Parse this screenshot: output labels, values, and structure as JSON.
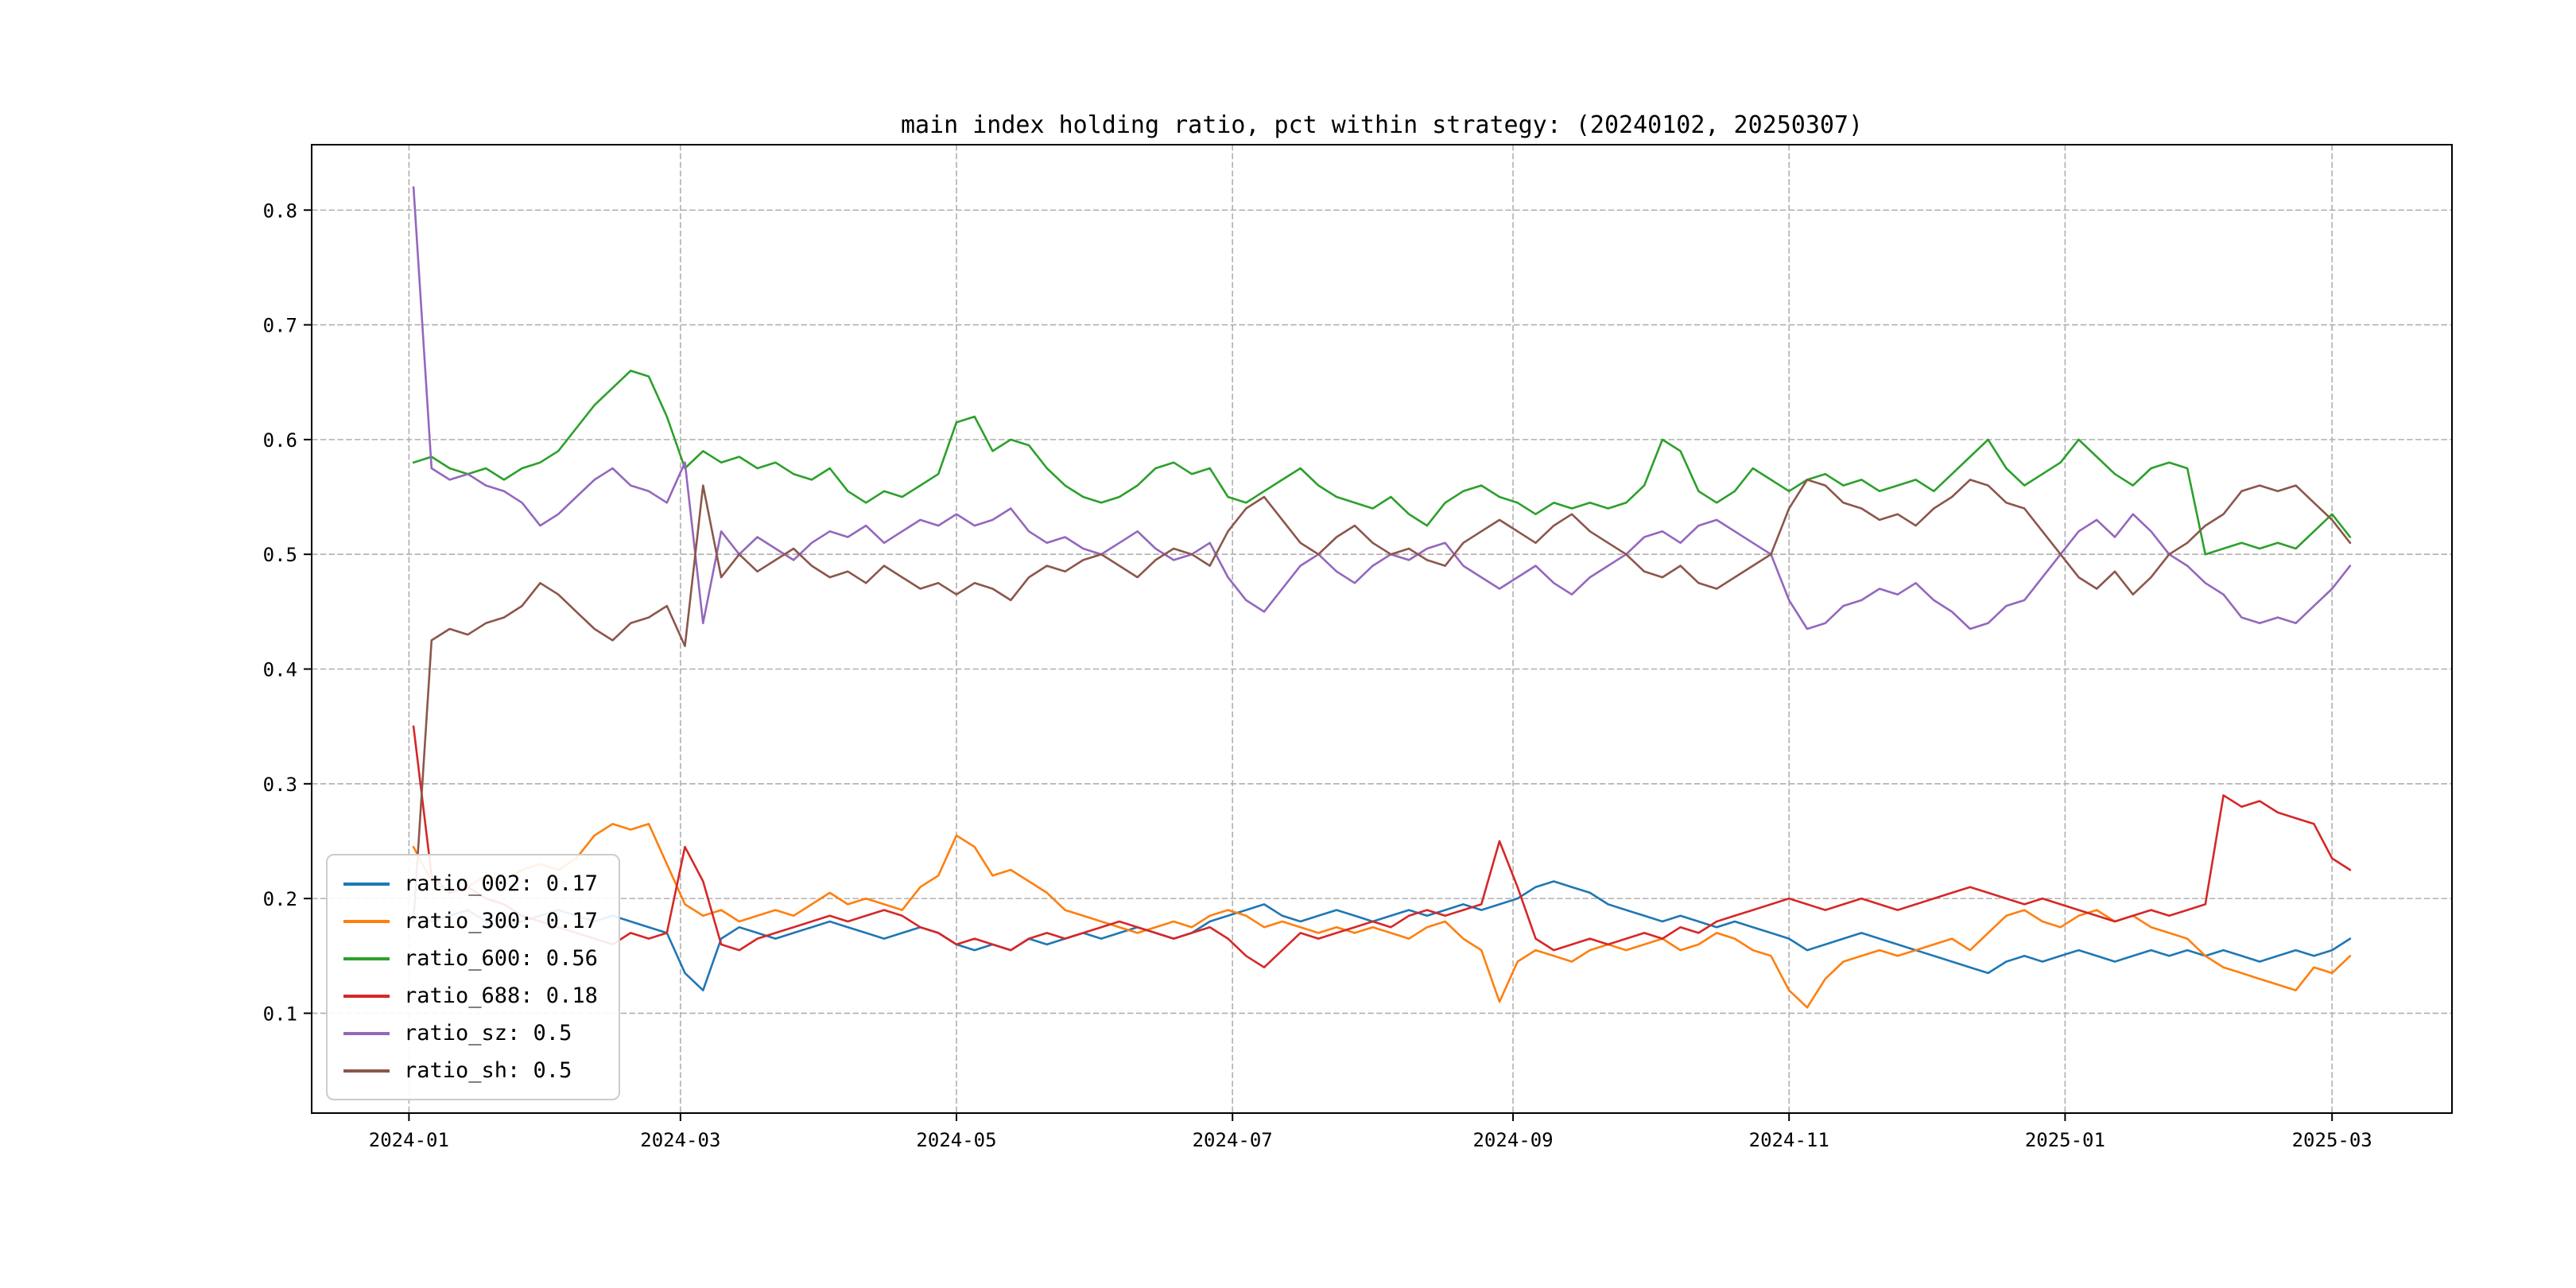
{
  "title": "main index holding ratio, pct within strategy: (20240102, 20250307)",
  "chart_data": {
    "type": "line",
    "title": "main index holding ratio, pct within strategy: (20240102, 20250307)",
    "grid": true,
    "legend_position": "lower left",
    "x_unit": "days since 2024-01-01",
    "date_range": [
      "20240102",
      "20250307"
    ],
    "xlim": [
      -21.5,
      451.5
    ],
    "ylim": [
      0.013,
      0.857
    ],
    "x_ticks": [
      {
        "t": 0,
        "label": "2024-01"
      },
      {
        "t": 60,
        "label": "2024-03"
      },
      {
        "t": 121,
        "label": "2024-05"
      },
      {
        "t": 182,
        "label": "2024-07"
      },
      {
        "t": 244,
        "label": "2024-09"
      },
      {
        "t": 305,
        "label": "2024-11"
      },
      {
        "t": 366,
        "label": "2025-01"
      },
      {
        "t": 425,
        "label": "2025-03"
      }
    ],
    "y_ticks": [
      {
        "v": 0.1,
        "label": "0.1"
      },
      {
        "v": 0.2,
        "label": "0.2"
      },
      {
        "v": 0.3,
        "label": "0.3"
      },
      {
        "v": 0.4,
        "label": "0.4"
      },
      {
        "v": 0.5,
        "label": "0.5"
      },
      {
        "v": 0.6,
        "label": "0.6"
      },
      {
        "v": 0.7,
        "label": "0.7"
      },
      {
        "v": 0.8,
        "label": "0.8"
      }
    ],
    "x": [
      1,
      5,
      9,
      13,
      17,
      21,
      25,
      29,
      33,
      37,
      41,
      45,
      49,
      53,
      57,
      61,
      65,
      69,
      73,
      77,
      81,
      85,
      89,
      93,
      97,
      101,
      105,
      109,
      113,
      117,
      121,
      125,
      129,
      133,
      137,
      141,
      145,
      149,
      153,
      157,
      161,
      165,
      169,
      173,
      177,
      181,
      185,
      189,
      193,
      197,
      201,
      205,
      209,
      213,
      217,
      221,
      225,
      229,
      233,
      237,
      241,
      245,
      249,
      253,
      257,
      261,
      265,
      269,
      273,
      277,
      281,
      285,
      289,
      293,
      297,
      301,
      305,
      309,
      313,
      317,
      321,
      325,
      329,
      333,
      337,
      341,
      345,
      349,
      353,
      357,
      361,
      365,
      369,
      373,
      377,
      381,
      385,
      389,
      393,
      397,
      401,
      405,
      409,
      413,
      417,
      421,
      425,
      429
    ],
    "series": [
      {
        "name": "ratio_002",
        "color": "#1f77b4",
        "legend": "ratio_002: 0.17",
        "values": [
          0.185,
          0.18,
          0.185,
          0.19,
          0.18,
          0.175,
          0.18,
          0.185,
          0.19,
          0.185,
          0.18,
          0.185,
          0.18,
          0.175,
          0.17,
          0.135,
          0.12,
          0.165,
          0.175,
          0.17,
          0.165,
          0.17,
          0.175,
          0.18,
          0.175,
          0.17,
          0.165,
          0.17,
          0.175,
          0.17,
          0.16,
          0.155,
          0.16,
          0.155,
          0.165,
          0.16,
          0.165,
          0.17,
          0.165,
          0.17,
          0.175,
          0.17,
          0.165,
          0.17,
          0.18,
          0.185,
          0.19,
          0.195,
          0.185,
          0.18,
          0.185,
          0.19,
          0.185,
          0.18,
          0.185,
          0.19,
          0.185,
          0.19,
          0.195,
          0.19,
          0.195,
          0.2,
          0.21,
          0.215,
          0.21,
          0.205,
          0.195,
          0.19,
          0.185,
          0.18,
          0.185,
          0.18,
          0.175,
          0.18,
          0.175,
          0.17,
          0.165,
          0.155,
          0.16,
          0.165,
          0.17,
          0.165,
          0.16,
          0.155,
          0.15,
          0.145,
          0.14,
          0.135,
          0.145,
          0.15,
          0.145,
          0.15,
          0.155,
          0.15,
          0.145,
          0.15,
          0.155,
          0.15,
          0.155,
          0.15,
          0.155,
          0.15,
          0.145,
          0.15,
          0.155,
          0.15,
          0.155,
          0.165
        ]
      },
      {
        "name": "ratio_300",
        "color": "#ff7f0e",
        "legend": "ratio_300: 0.17",
        "values": [
          0.245,
          0.215,
          0.205,
          0.21,
          0.22,
          0.215,
          0.225,
          0.23,
          0.225,
          0.235,
          0.255,
          0.265,
          0.26,
          0.265,
          0.23,
          0.195,
          0.185,
          0.19,
          0.18,
          0.185,
          0.19,
          0.185,
          0.195,
          0.205,
          0.195,
          0.2,
          0.195,
          0.19,
          0.21,
          0.22,
          0.255,
          0.245,
          0.22,
          0.225,
          0.215,
          0.205,
          0.19,
          0.185,
          0.18,
          0.175,
          0.17,
          0.175,
          0.18,
          0.175,
          0.185,
          0.19,
          0.185,
          0.175,
          0.18,
          0.175,
          0.17,
          0.175,
          0.17,
          0.175,
          0.17,
          0.165,
          0.175,
          0.18,
          0.165,
          0.155,
          0.11,
          0.145,
          0.155,
          0.15,
          0.145,
          0.155,
          0.16,
          0.155,
          0.16,
          0.165,
          0.155,
          0.16,
          0.17,
          0.165,
          0.155,
          0.15,
          0.12,
          0.105,
          0.13,
          0.145,
          0.15,
          0.155,
          0.15,
          0.155,
          0.16,
          0.165,
          0.155,
          0.17,
          0.185,
          0.19,
          0.18,
          0.175,
          0.185,
          0.19,
          0.18,
          0.185,
          0.175,
          0.17,
          0.165,
          0.15,
          0.14,
          0.135,
          0.13,
          0.125,
          0.12,
          0.14,
          0.135,
          0.15
        ]
      },
      {
        "name": "ratio_600",
        "color": "#2ca02c",
        "legend": "ratio_600: 0.56",
        "values": [
          0.58,
          0.585,
          0.575,
          0.57,
          0.575,
          0.565,
          0.575,
          0.58,
          0.59,
          0.61,
          0.63,
          0.645,
          0.66,
          0.655,
          0.62,
          0.575,
          0.59,
          0.58,
          0.585,
          0.575,
          0.58,
          0.57,
          0.565,
          0.575,
          0.555,
          0.545,
          0.555,
          0.55,
          0.56,
          0.57,
          0.615,
          0.62,
          0.59,
          0.6,
          0.595,
          0.575,
          0.56,
          0.55,
          0.545,
          0.55,
          0.56,
          0.575,
          0.58,
          0.57,
          0.575,
          0.55,
          0.545,
          0.555,
          0.565,
          0.575,
          0.56,
          0.55,
          0.545,
          0.54,
          0.55,
          0.535,
          0.525,
          0.545,
          0.555,
          0.56,
          0.55,
          0.545,
          0.535,
          0.545,
          0.54,
          0.545,
          0.54,
          0.545,
          0.56,
          0.6,
          0.59,
          0.555,
          0.545,
          0.555,
          0.575,
          0.565,
          0.555,
          0.565,
          0.57,
          0.56,
          0.565,
          0.555,
          0.56,
          0.565,
          0.555,
          0.57,
          0.585,
          0.6,
          0.575,
          0.56,
          0.57,
          0.58,
          0.6,
          0.585,
          0.57,
          0.56,
          0.575,
          0.58,
          0.575,
          0.5,
          0.505,
          0.51,
          0.505,
          0.51,
          0.505,
          0.52,
          0.535,
          0.515
        ]
      },
      {
        "name": "ratio_688",
        "color": "#d62728",
        "legend": "ratio_688: 0.18",
        "values": [
          0.35,
          0.22,
          0.205,
          0.21,
          0.2,
          0.195,
          0.185,
          0.18,
          0.175,
          0.17,
          0.165,
          0.16,
          0.17,
          0.165,
          0.17,
          0.245,
          0.215,
          0.16,
          0.155,
          0.165,
          0.17,
          0.175,
          0.18,
          0.185,
          0.18,
          0.185,
          0.19,
          0.185,
          0.175,
          0.17,
          0.16,
          0.165,
          0.16,
          0.155,
          0.165,
          0.17,
          0.165,
          0.17,
          0.175,
          0.18,
          0.175,
          0.17,
          0.165,
          0.17,
          0.175,
          0.165,
          0.15,
          0.14,
          0.155,
          0.17,
          0.165,
          0.17,
          0.175,
          0.18,
          0.175,
          0.185,
          0.19,
          0.185,
          0.19,
          0.195,
          0.25,
          0.21,
          0.165,
          0.155,
          0.16,
          0.165,
          0.16,
          0.165,
          0.17,
          0.165,
          0.175,
          0.17,
          0.18,
          0.185,
          0.19,
          0.195,
          0.2,
          0.195,
          0.19,
          0.195,
          0.2,
          0.195,
          0.19,
          0.195,
          0.2,
          0.205,
          0.21,
          0.205,
          0.2,
          0.195,
          0.2,
          0.195,
          0.19,
          0.185,
          0.18,
          0.185,
          0.19,
          0.185,
          0.19,
          0.195,
          0.29,
          0.28,
          0.285,
          0.275,
          0.27,
          0.265,
          0.235,
          0.225
        ]
      },
      {
        "name": "ratio_sz",
        "color": "#9467bd",
        "legend": "ratio_sz: 0.5",
        "values": [
          0.82,
          0.575,
          0.565,
          0.57,
          0.56,
          0.555,
          0.545,
          0.525,
          0.535,
          0.55,
          0.565,
          0.575,
          0.56,
          0.555,
          0.545,
          0.58,
          0.44,
          0.52,
          0.5,
          0.515,
          0.505,
          0.495,
          0.51,
          0.52,
          0.515,
          0.525,
          0.51,
          0.52,
          0.53,
          0.525,
          0.535,
          0.525,
          0.53,
          0.54,
          0.52,
          0.51,
          0.515,
          0.505,
          0.5,
          0.51,
          0.52,
          0.505,
          0.495,
          0.5,
          0.51,
          0.48,
          0.46,
          0.45,
          0.47,
          0.49,
          0.5,
          0.485,
          0.475,
          0.49,
          0.5,
          0.495,
          0.505,
          0.51,
          0.49,
          0.48,
          0.47,
          0.48,
          0.49,
          0.475,
          0.465,
          0.48,
          0.49,
          0.5,
          0.515,
          0.52,
          0.51,
          0.525,
          0.53,
          0.52,
          0.51,
          0.5,
          0.46,
          0.435,
          0.44,
          0.455,
          0.46,
          0.47,
          0.465,
          0.475,
          0.46,
          0.45,
          0.435,
          0.44,
          0.455,
          0.46,
          0.48,
          0.5,
          0.52,
          0.53,
          0.515,
          0.535,
          0.52,
          0.5,
          0.49,
          0.475,
          0.465,
          0.445,
          0.44,
          0.445,
          0.44,
          0.455,
          0.47,
          0.49
        ]
      },
      {
        "name": "ratio_sh",
        "color": "#8c564b",
        "legend": "ratio_sh: 0.5",
        "values": [
          0.18,
          0.425,
          0.435,
          0.43,
          0.44,
          0.445,
          0.455,
          0.475,
          0.465,
          0.45,
          0.435,
          0.425,
          0.44,
          0.445,
          0.455,
          0.42,
          0.56,
          0.48,
          0.5,
          0.485,
          0.495,
          0.505,
          0.49,
          0.48,
          0.485,
          0.475,
          0.49,
          0.48,
          0.47,
          0.475,
          0.465,
          0.475,
          0.47,
          0.46,
          0.48,
          0.49,
          0.485,
          0.495,
          0.5,
          0.49,
          0.48,
          0.495,
          0.505,
          0.5,
          0.49,
          0.52,
          0.54,
          0.55,
          0.53,
          0.51,
          0.5,
          0.515,
          0.525,
          0.51,
          0.5,
          0.505,
          0.495,
          0.49,
          0.51,
          0.52,
          0.53,
          0.52,
          0.51,
          0.525,
          0.535,
          0.52,
          0.51,
          0.5,
          0.485,
          0.48,
          0.49,
          0.475,
          0.47,
          0.48,
          0.49,
          0.5,
          0.54,
          0.565,
          0.56,
          0.545,
          0.54,
          0.53,
          0.535,
          0.525,
          0.54,
          0.55,
          0.565,
          0.56,
          0.545,
          0.54,
          0.52,
          0.5,
          0.48,
          0.47,
          0.485,
          0.465,
          0.48,
          0.5,
          0.51,
          0.525,
          0.535,
          0.555,
          0.56,
          0.555,
          0.56,
          0.545,
          0.53,
          0.51
        ]
      }
    ]
  },
  "style": {
    "grid_color": "#b0b0b0",
    "frame_color": "#000000",
    "background": "#ffffff",
    "legend_border": "#cccccc"
  }
}
